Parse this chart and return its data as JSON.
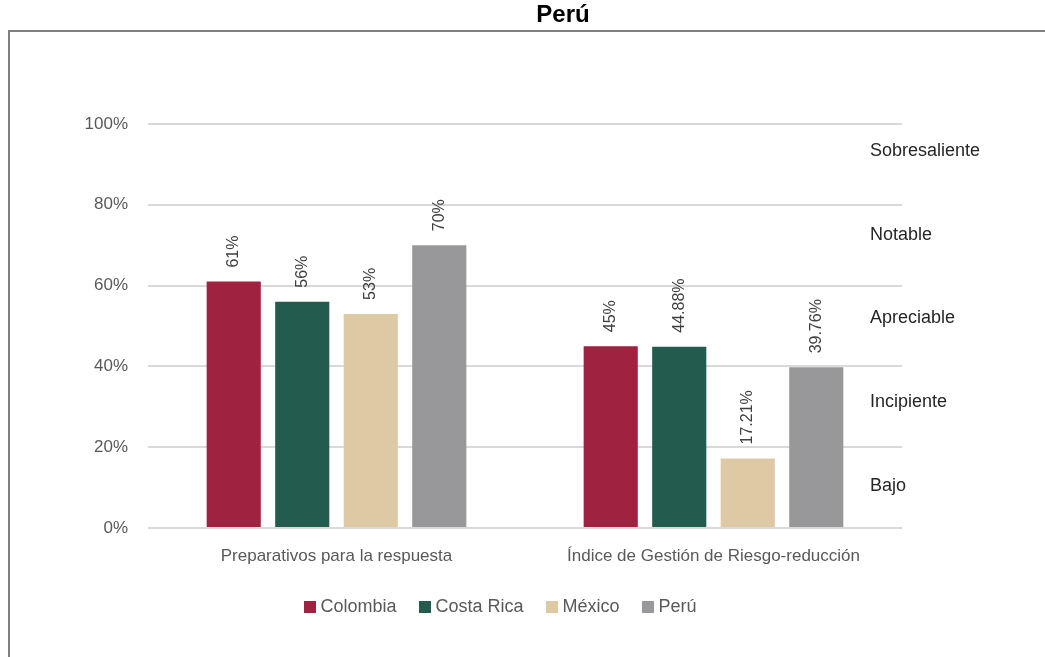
{
  "chart_data": {
    "type": "bar",
    "title": "Perú",
    "categories": [
      "Preparativos para la respuesta",
      "Índice de Gestión de Riesgo-reducción"
    ],
    "series": [
      {
        "name": "Colombia",
        "color": "#9f2241",
        "values": [
          61,
          45
        ],
        "value_labels": [
          "61%",
          "45%"
        ]
      },
      {
        "name": "Costa Rica",
        "color": "#235b4e",
        "values": [
          56,
          44.88
        ],
        "value_labels": [
          "56%",
          "44.88%"
        ]
      },
      {
        "name": "México",
        "color": "#ddc9a3",
        "values": [
          53,
          17.21
        ],
        "value_labels": [
          "53%",
          "17.21%"
        ]
      },
      {
        "name": "Perú",
        "color": "#98989a",
        "values": [
          70,
          39.76
        ],
        "value_labels": [
          "70%",
          "39.76%"
        ]
      }
    ],
    "ylim": [
      0,
      100
    ],
    "yticks": [
      {
        "value": 0,
        "label": "0%"
      },
      {
        "value": 20,
        "label": "20%"
      },
      {
        "value": 40,
        "label": "40%"
      },
      {
        "value": 60,
        "label": "60%"
      },
      {
        "value": 80,
        "label": "80%"
      },
      {
        "value": 100,
        "label": "100%"
      }
    ],
    "annotations": [
      "Sobresaliente",
      "Notable",
      "Apreciable",
      "Incipiente",
      "Bajo"
    ],
    "grid": "y",
    "legend": "bottom"
  }
}
